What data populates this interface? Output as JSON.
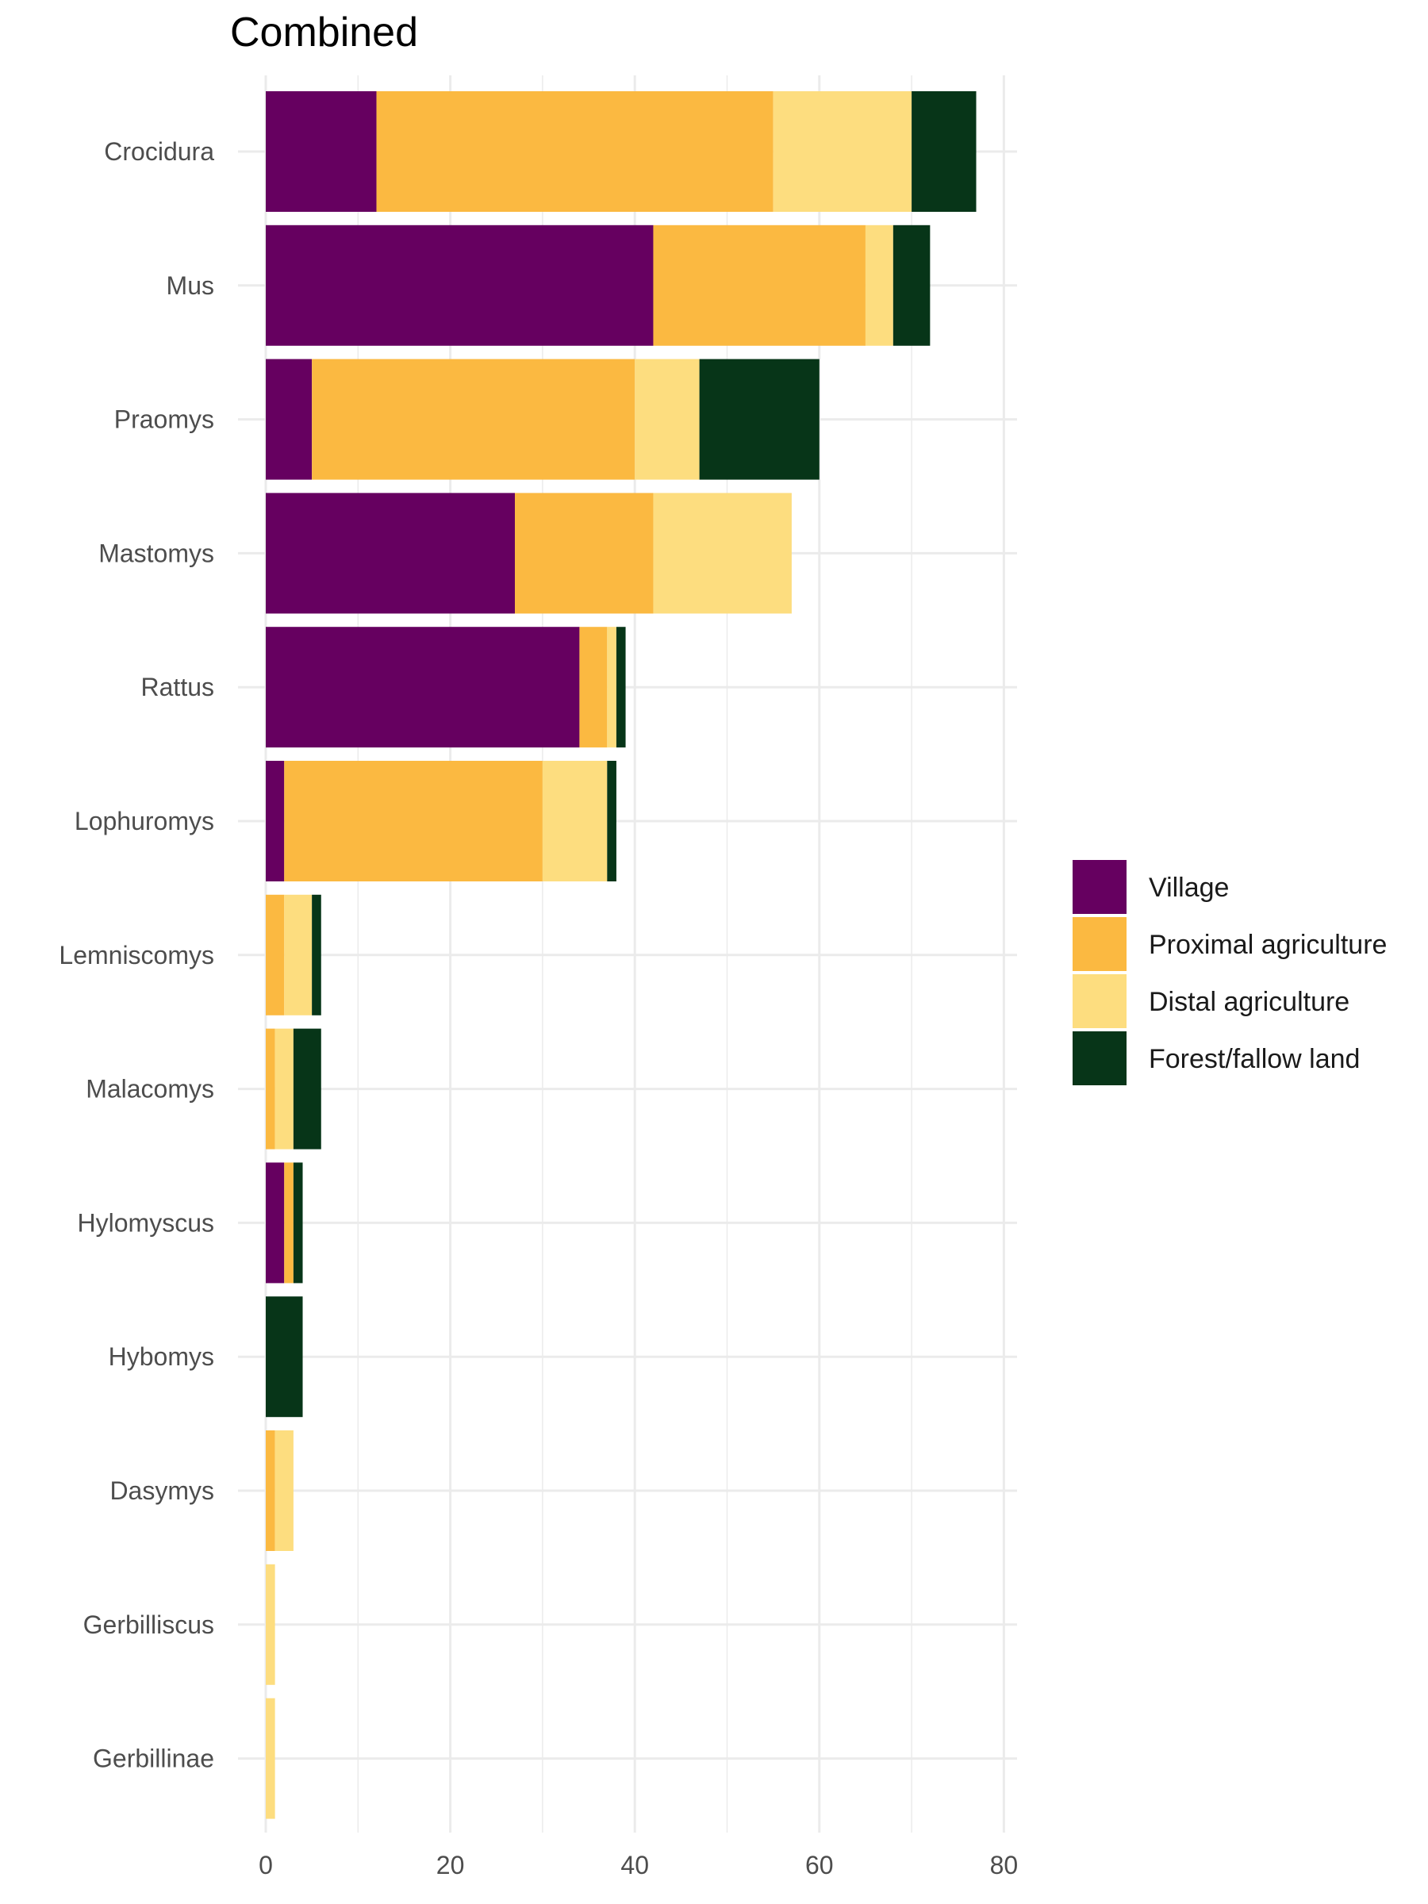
{
  "chart_data": {
    "type": "bar",
    "orientation": "horizontal",
    "stacked": true,
    "title": "Combined",
    "xlabel": "",
    "ylabel": "",
    "xlim": [
      0,
      80
    ],
    "xticks": [
      0,
      20,
      40,
      60,
      80
    ],
    "grid": true,
    "legend_position": "right",
    "categories": [
      "Crocidura",
      "Mus",
      "Praomys",
      "Mastomys",
      "Rattus",
      "Lophuromys",
      "Lemniscomys",
      "Malacomys",
      "Hylomyscus",
      "Hybomys",
      "Dasymys",
      "Gerbilliscus",
      "Gerbillinae"
    ],
    "series": [
      {
        "name": "Village",
        "color": "#660060",
        "values": [
          12,
          42,
          5,
          27,
          34,
          2,
          0,
          0,
          2,
          0,
          0,
          0,
          0
        ]
      },
      {
        "name": "Proximal agriculture",
        "color": "#FBB941",
        "values": [
          43,
          23,
          35,
          15,
          3,
          28,
          2,
          1,
          1,
          0,
          1,
          0,
          0
        ]
      },
      {
        "name": "Distal agriculture",
        "color": "#FDDD7F",
        "values": [
          15,
          3,
          7,
          15,
          1,
          7,
          3,
          2,
          0,
          0,
          2,
          1,
          1
        ]
      },
      {
        "name": "Forest/fallow land",
        "color": "#073518",
        "values": [
          7,
          4,
          13,
          0,
          1,
          1,
          1,
          3,
          1,
          4,
          0,
          0,
          0
        ]
      }
    ]
  }
}
